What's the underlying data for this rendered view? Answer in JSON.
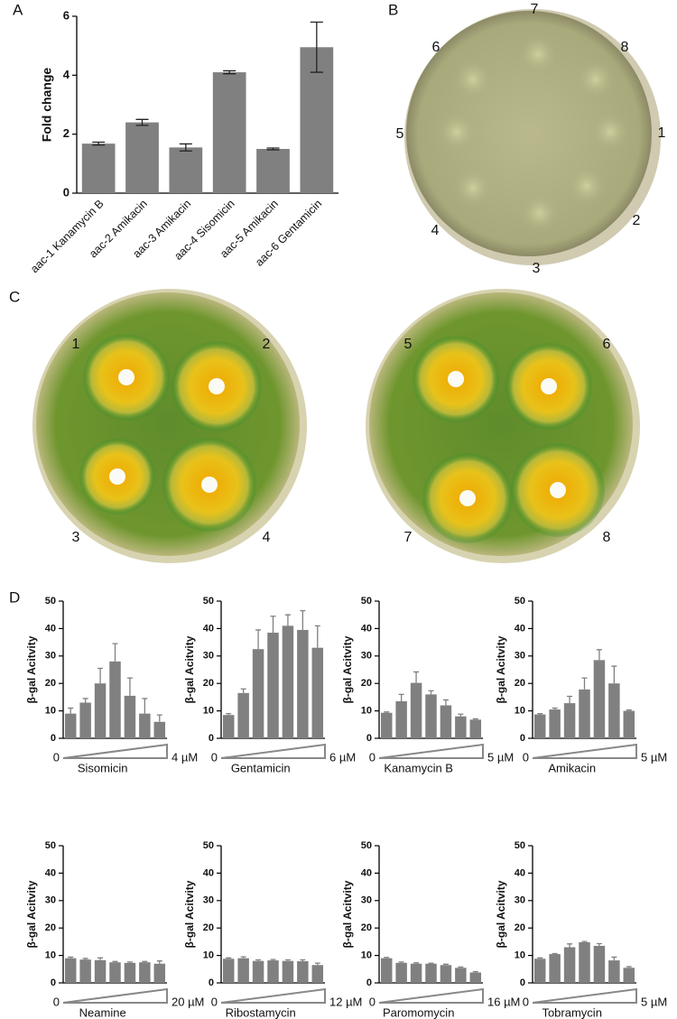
{
  "figure": {
    "panel_labels": [
      "A",
      "B",
      "C",
      "D"
    ],
    "plate_b_labels": [
      "1",
      "2",
      "3",
      "4",
      "5",
      "6",
      "7",
      "8"
    ],
    "plate_c_labels": [
      "1",
      "2",
      "3",
      "4",
      "5",
      "6",
      "7",
      "8"
    ]
  },
  "chart_data": [
    {
      "type": "bar",
      "ylabel": "Fold change",
      "color": "#808080",
      "categories": [
        "aac-1 Kanamycin B",
        "aac-2 Amikacin",
        "aac-3 Amikacin",
        "aac-4 Sisomicin",
        "aac-5 Amikacin",
        "aac-6 Gentamicin"
      ],
      "values": [
        1.68,
        2.4,
        1.55,
        4.1,
        1.5,
        4.95
      ],
      "errors": [
        0.05,
        0.1,
        0.12,
        0.05,
        0.03,
        0.85
      ],
      "ylim": [
        0,
        6
      ],
      "yticks": [
        0,
        2,
        4,
        6
      ]
    },
    {
      "type": "bar",
      "ylabel": "β-gal Acitvity",
      "color": "#808080",
      "xlabel": "Sisomicin",
      "gradient_start": "0",
      "gradient_end": "4 µM",
      "categories": [
        null,
        null,
        null,
        null,
        null,
        null,
        null
      ],
      "values": [
        9,
        13,
        20,
        28,
        15.5,
        9,
        6
      ],
      "errors": [
        2,
        1.5,
        5.5,
        6.5,
        6.5,
        5.5,
        2.5
      ],
      "ylim": [
        0,
        50
      ],
      "yticks": [
        0,
        10,
        20,
        30,
        40,
        50
      ]
    },
    {
      "type": "bar",
      "ylabel": "β-gal Acitvity",
      "color": "#808080",
      "xlabel": "Gentamicin",
      "gradient_start": "0",
      "gradient_end": "6 µM",
      "categories": [
        null,
        null,
        null,
        null,
        null,
        null,
        null
      ],
      "values": [
        8.5,
        16.5,
        32.5,
        38.5,
        41,
        39.5,
        33
      ],
      "errors": [
        0.5,
        1.5,
        7,
        6,
        4,
        7,
        8
      ],
      "ylim": [
        0,
        50
      ],
      "yticks": [
        0,
        10,
        20,
        30,
        40,
        50
      ]
    },
    {
      "type": "bar",
      "ylabel": "β-gal Acitvity",
      "color": "#808080",
      "xlabel": "Kanamycin B",
      "gradient_start": "0",
      "gradient_end": "5 µM",
      "categories": [
        null,
        null,
        null,
        null,
        null,
        null,
        null
      ],
      "values": [
        9.3,
        13.5,
        20.2,
        16,
        12,
        8,
        6.8
      ],
      "errors": [
        0.3,
        2.5,
        4,
        1.3,
        2,
        0.8,
        0.3
      ],
      "ylim": [
        0,
        50
      ],
      "yticks": [
        0,
        10,
        20,
        30,
        40,
        50
      ]
    },
    {
      "type": "bar",
      "ylabel": "β-gal Acitvity",
      "color": "#808080",
      "xlabel": "Amikacin",
      "gradient_start": "0",
      "gradient_end": "5 µM",
      "categories": [
        null,
        null,
        null,
        null,
        null,
        null,
        null
      ],
      "values": [
        8.7,
        10.5,
        12.8,
        17.8,
        28.5,
        20,
        10
      ],
      "errors": [
        0.3,
        0.5,
        2.5,
        4.2,
        3.8,
        6.3,
        0.3
      ],
      "ylim": [
        0,
        50
      ],
      "yticks": [
        0,
        10,
        20,
        30,
        40,
        50
      ]
    },
    {
      "type": "bar",
      "ylabel": "β-gal Acitvity",
      "color": "#808080",
      "xlabel": "Neamine",
      "gradient_start": "0",
      "gradient_end": "20 µM",
      "categories": [
        null,
        null,
        null,
        null,
        null,
        null,
        null
      ],
      "values": [
        9,
        8.5,
        8.3,
        7.5,
        7.3,
        7.5,
        7
      ],
      "errors": [
        0.4,
        0.4,
        0.8,
        0.3,
        0.3,
        0.3,
        1
      ],
      "ylim": [
        0,
        50
      ],
      "yticks": [
        0,
        10,
        20,
        30,
        40,
        50
      ]
    },
    {
      "type": "bar",
      "ylabel": "β-gal Acitvity",
      "color": "#808080",
      "xlabel": "Ribostamycin",
      "gradient_start": "0",
      "gradient_end": "12 µM",
      "categories": [
        null,
        null,
        null,
        null,
        null,
        null,
        null
      ],
      "values": [
        8.8,
        9,
        8,
        8.2,
        8,
        7.9,
        6.5
      ],
      "errors": [
        0.3,
        0.5,
        0.4,
        0.3,
        0.4,
        0.5,
        0.7
      ],
      "ylim": [
        0,
        50
      ],
      "yticks": [
        0,
        10,
        20,
        30,
        40,
        50
      ]
    },
    {
      "type": "bar",
      "ylabel": "β-gal Acitvity",
      "color": "#808080",
      "xlabel": "Paromomycin",
      "gradient_start": "0",
      "gradient_end": "16 µM",
      "categories": [
        null,
        null,
        null,
        null,
        null,
        null,
        null
      ],
      "values": [
        9,
        7.3,
        7,
        7,
        6.5,
        5.5,
        3.8
      ],
      "errors": [
        0.3,
        0.3,
        0.3,
        0.2,
        0.3,
        0.3,
        0.3
      ],
      "ylim": [
        0,
        50
      ],
      "yticks": [
        0,
        10,
        20,
        30,
        40,
        50
      ]
    },
    {
      "type": "bar",
      "ylabel": "β-gal Acitvity",
      "color": "#808080",
      "xlabel": "Tobramycin",
      "gradient_start": "0",
      "gradient_end": "5 µM",
      "categories": [
        null,
        null,
        null,
        null,
        null,
        null,
        null
      ],
      "values": [
        8.8,
        10.5,
        13,
        14.8,
        13.5,
        8.2,
        5.5
      ],
      "errors": [
        0.3,
        0.2,
        1.2,
        0.3,
        0.8,
        1.2,
        0.4
      ],
      "ylim": [
        0,
        50
      ],
      "yticks": [
        0,
        10,
        20,
        30,
        40,
        50
      ]
    }
  ]
}
